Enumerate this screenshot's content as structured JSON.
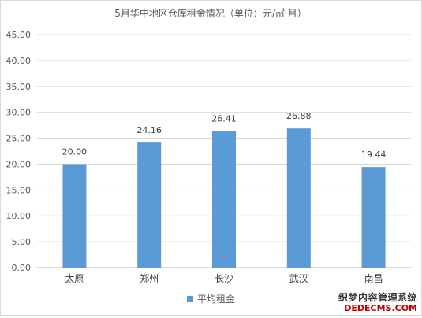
{
  "chart_data": {
    "type": "bar",
    "title": "5月华中地区仓库租金情况（单位：元/㎡·月）",
    "xlabel": "",
    "ylabel": "",
    "categories": [
      "太原",
      "郑州",
      "长沙",
      "武汉",
      "南昌"
    ],
    "series": [
      {
        "name": "平均租金",
        "values": [
          20.0,
          24.16,
          26.41,
          26.88,
          19.44
        ],
        "color": "#5b9bd5"
      }
    ],
    "data_labels": [
      "20.00",
      "24.16",
      "26.41",
      "26.88",
      "19.44"
    ],
    "ylim": [
      0,
      45
    ],
    "yticks": [
      "0.00",
      "5.00",
      "10.00",
      "15.00",
      "20.00",
      "25.00",
      "30.00",
      "35.00",
      "40.00",
      "45.00"
    ],
    "grid": true,
    "legend_position": "bottom"
  },
  "watermark": {
    "line1": "织梦内容管理系统",
    "line2": "DEDECMS.COM"
  }
}
